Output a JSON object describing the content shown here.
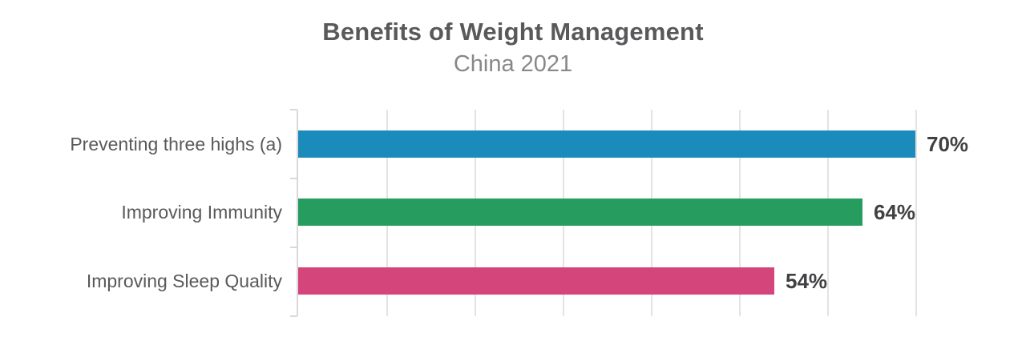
{
  "header": {
    "title_color": "#58595b",
    "subtitle_color": "#87888a"
  },
  "chart_data": {
    "type": "bar",
    "orientation": "horizontal",
    "title": "Benefits of Weight Management",
    "subtitle": "China 2021",
    "categories": [
      "Preventing three highs (a)",
      "Improving Immunity",
      "Improving Sleep Quality"
    ],
    "values": [
      70,
      64,
      54
    ],
    "value_labels": [
      "70%",
      "64%",
      "54%"
    ],
    "bar_colors": [
      "#1b8bbc",
      "#279c5f",
      "#d4457c"
    ],
    "xlim": [
      0,
      70
    ],
    "grid_step": 10,
    "grid": true,
    "legend": "none",
    "x_tick_labels": "none",
    "category_label_color": "#58595b",
    "value_label_color": "#414042",
    "gridline_color": "#e3e3e3",
    "axis_color": "#d9d9d9"
  }
}
